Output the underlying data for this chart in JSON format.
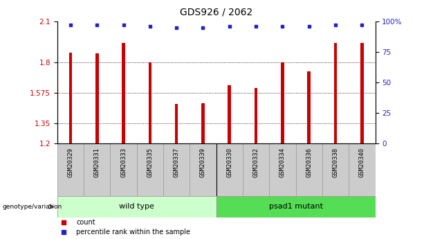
{
  "title": "GDS926 / 2062",
  "samples": [
    "GSM20329",
    "GSM20331",
    "GSM20333",
    "GSM20335",
    "GSM20337",
    "GSM20339",
    "GSM20330",
    "GSM20332",
    "GSM20334",
    "GSM20336",
    "GSM20338",
    "GSM20340"
  ],
  "counts": [
    1.87,
    1.865,
    1.94,
    1.8,
    1.49,
    1.495,
    1.63,
    1.61,
    1.8,
    1.73,
    1.94,
    1.94
  ],
  "percentiles": [
    97,
    97,
    97,
    96,
    95,
    95,
    96,
    96,
    96,
    96,
    97,
    97
  ],
  "bar_color": "#cc0000",
  "dot_color": "#2222cc",
  "ylim_left": [
    1.2,
    2.1
  ],
  "ylim_right": [
    0,
    100
  ],
  "yticks_left": [
    1.2,
    1.35,
    1.575,
    1.8,
    2.1
  ],
  "ytick_labels_left": [
    "1.2",
    "1.35",
    "1.575",
    "1.8",
    "2.1"
  ],
  "yticks_right": [
    0,
    25,
    50,
    75,
    100
  ],
  "ytick_labels_right": [
    "0",
    "25",
    "50",
    "75",
    "100%"
  ],
  "grid_lines": [
    1.35,
    1.575,
    1.8
  ],
  "group1_label": "wild type",
  "group2_label": "psad1 mutant",
  "group1_color": "#ccffcc",
  "group2_color": "#55dd55",
  "genotype_label": "genotype/variation",
  "legend_count": "count",
  "legend_percentile": "percentile rank within the sample",
  "tick_label_color_left": "#cc0000",
  "tick_label_color_right": "#2222cc",
  "xtick_bg_color": "#cccccc",
  "xtick_border_color": "#999999"
}
